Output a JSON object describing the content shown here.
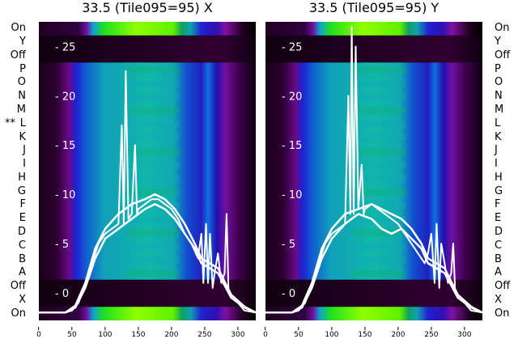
{
  "panels": [
    {
      "title": "33.5 (Tile095=95) X"
    },
    {
      "title": "33.5 (Tile095=95) Y"
    }
  ],
  "row_labels": [
    "On",
    "Y",
    "Off",
    "P",
    "O",
    "N",
    "M",
    "L",
    "K",
    "J",
    "I",
    "H",
    "G",
    "F",
    "E",
    "D",
    "C",
    "B",
    "A",
    "Off",
    "X",
    "On"
  ],
  "marker": "**",
  "chart_data": {
    "type": "heatmap",
    "x_ticks": [
      "0",
      "50",
      "100",
      "150",
      "200",
      "250",
      "300"
    ],
    "x_range": [
      0,
      327
    ],
    "y_ticks": [
      "0",
      "5",
      "10",
      "15",
      "20",
      "25"
    ],
    "y_range": [
      -2.8,
      27.5
    ],
    "series": [
      {
        "name": "X",
        "curves": [
          {
            "x": [
              0,
              40,
              50,
              60,
              70,
              80,
              90,
              100,
              110,
              120,
              125,
              128,
              131,
              135,
              140,
              145,
              148,
              150,
              160,
              170,
              180,
              190,
              200,
              210,
              220,
              230,
              240,
              245,
              248,
              252,
              255,
              258,
              262,
              265,
              270,
              275,
              280,
              283,
              286,
              290,
              300,
              310,
              327
            ],
            "y": [
              -2,
              -2,
              -1.8,
              -1,
              1,
              3,
              5,
              6,
              6.5,
              7,
              17,
              7,
              22.5,
              7.5,
              8,
              15,
              8,
              8.5,
              9,
              9.5,
              9.5,
              9,
              8.5,
              7.5,
              6,
              5,
              3.5,
              6,
              1,
              7,
              1,
              6,
              0.5,
              2,
              4,
              1,
              2,
              8,
              0,
              -0.5,
              -1,
              -1.8,
              -2
            ]
          },
          {
            "x": [
              0,
              40,
              55,
              70,
              85,
              100,
              120,
              140,
              160,
              175,
              190,
              205,
              220,
              235,
              245,
              270,
              290,
              310,
              327
            ],
            "y": [
              -2,
              -2,
              -1.5,
              0.5,
              3.5,
              5.5,
              6.5,
              7.5,
              8.5,
              9,
              8.5,
              7.5,
              6,
              4.5,
              3,
              2,
              -0.5,
              -1.5,
              -2
            ]
          },
          {
            "x": [
              0,
              40,
              55,
              70,
              85,
              100,
              120,
              140,
              160,
              175,
              190,
              205,
              220,
              235,
              245,
              270,
              290,
              310,
              327
            ],
            "y": [
              -2,
              -2,
              -1.3,
              1,
              4.5,
              6.5,
              8,
              9,
              9.5,
              10,
              9.5,
              8.5,
              7,
              5,
              3.5,
              2.5,
              -0.2,
              -1.4,
              -2
            ]
          }
        ]
      },
      {
        "name": "Y",
        "curves": [
          {
            "x": [
              0,
              40,
              50,
              60,
              70,
              80,
              90,
              100,
              110,
              120,
              125,
              128,
              130,
              133,
              136,
              140,
              145,
              148,
              150,
              160,
              170,
              180,
              190,
              200,
              210,
              220,
              230,
              240,
              245,
              250,
              255,
              258,
              262,
              265,
              270,
              275,
              280,
              283,
              286,
              290,
              300,
              310,
              327
            ],
            "y": [
              -2,
              -2,
              -1.8,
              -1,
              1,
              3,
              5,
              6,
              6.5,
              7,
              20,
              8,
              27,
              8,
              25,
              8.5,
              13,
              8,
              8.5,
              9,
              8.5,
              8,
              7.5,
              7,
              6,
              5,
              4,
              3,
              4,
              6,
              1,
              7,
              0.5,
              5,
              3,
              1,
              2,
              5,
              0,
              -0.5,
              -1,
              -1.8,
              -2
            ]
          },
          {
            "x": [
              0,
              40,
              55,
              70,
              85,
              100,
              120,
              140,
              160,
              175,
              190,
              205,
              220,
              235,
              245,
              270,
              290,
              310,
              327
            ],
            "y": [
              -2,
              -2,
              -1.5,
              0.5,
              3.5,
              5.5,
              7,
              8,
              7.5,
              6.5,
              6,
              6.5,
              5.5,
              4.5,
              3,
              2,
              -0.5,
              -1.5,
              -2
            ]
          },
          {
            "x": [
              0,
              40,
              55,
              70,
              85,
              100,
              120,
              140,
              160,
              175,
              190,
              205,
              220,
              235,
              245,
              270,
              290,
              310,
              327
            ],
            "y": [
              -2,
              -2,
              -1.3,
              1,
              4.5,
              6.5,
              8,
              8.5,
              9,
              8.5,
              8,
              7.5,
              6.5,
              5,
              3.5,
              2.5,
              -0.2,
              -1.4,
              -2
            ]
          }
        ]
      }
    ]
  }
}
